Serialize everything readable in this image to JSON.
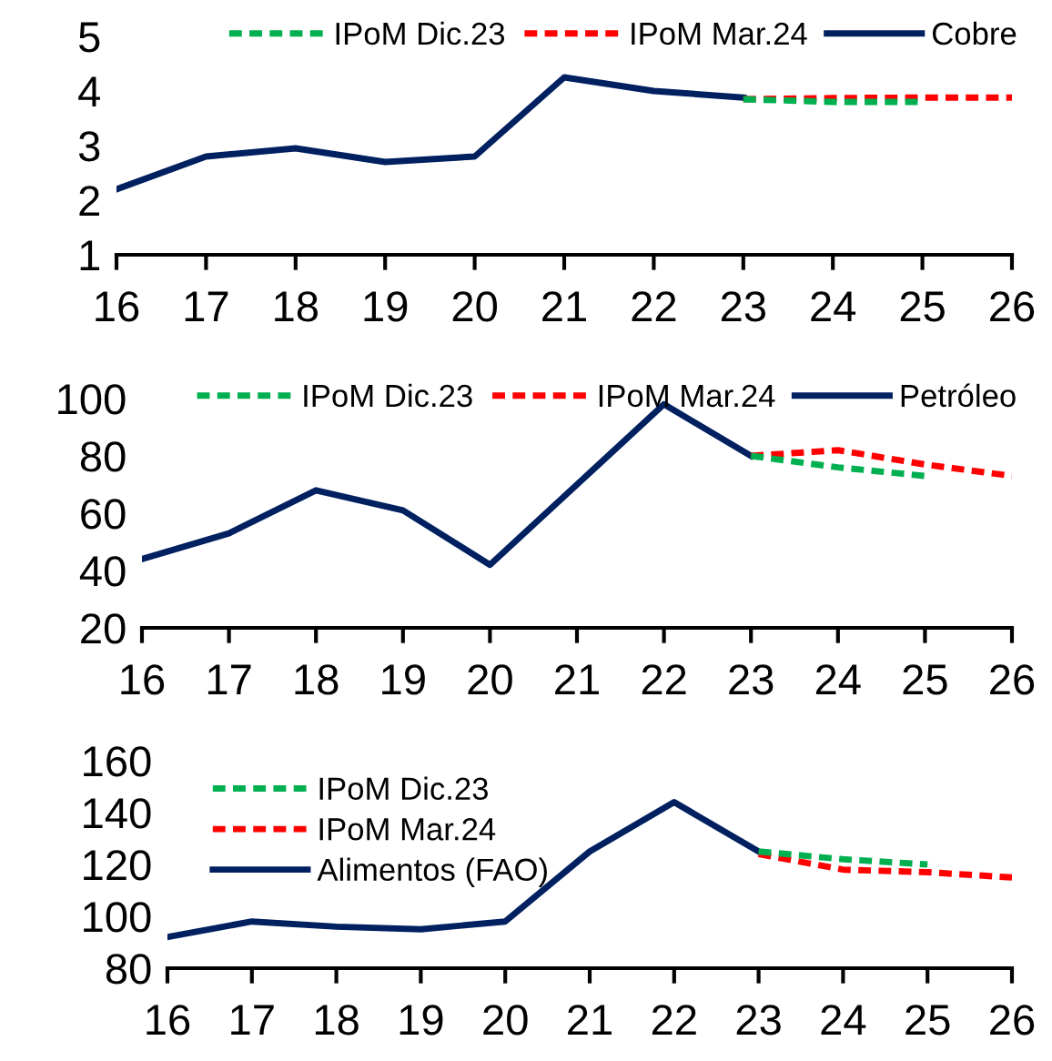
{
  "chart_data": [
    {
      "type": "line",
      "x": [
        16,
        17,
        18,
        19,
        20,
        21,
        22,
        23
      ],
      "xlim": [
        16,
        26
      ],
      "xticks": [
        16,
        17,
        18,
        19,
        20,
        21,
        22,
        23,
        24,
        25,
        26
      ],
      "ylim": [
        1,
        5
      ],
      "yticks": [
        1,
        2,
        3,
        4,
        5
      ],
      "grid": false,
      "legend": "top",
      "series": [
        {
          "name": "IPoM Dic.23",
          "color": "#00b050",
          "line_style": "dashed",
          "x": [
            23,
            24,
            25
          ],
          "values": [
            3.85,
            3.8,
            3.8
          ]
        },
        {
          "name": "IPoM Mar.24",
          "color": "#ff0000",
          "line_style": "dashed",
          "x": [
            23,
            24,
            25,
            26
          ],
          "values": [
            3.85,
            3.87,
            3.88,
            3.88
          ]
        },
        {
          "name": "Cobre",
          "color": "#002060",
          "line_style": "solid",
          "values": [
            2.2,
            2.8,
            2.95,
            2.7,
            2.8,
            4.25,
            4.0,
            3.88
          ]
        }
      ]
    },
    {
      "type": "line",
      "x": [
        16,
        17,
        18,
        19,
        20,
        21,
        22,
        23
      ],
      "xlim": [
        16,
        26
      ],
      "xticks": [
        16,
        17,
        18,
        19,
        20,
        21,
        22,
        23,
        24,
        25,
        26
      ],
      "ylim": [
        20,
        100
      ],
      "yticks": [
        20,
        40,
        60,
        80,
        100
      ],
      "grid": false,
      "legend": "top",
      "series": [
        {
          "name": "IPoM Dic.23",
          "color": "#00b050",
          "line_style": "dashed",
          "x": [
            23,
            24,
            25
          ],
          "values": [
            80,
            76,
            73
          ]
        },
        {
          "name": "IPoM Mar.24",
          "color": "#ff0000",
          "line_style": "dashed",
          "x": [
            23,
            24,
            25,
            26
          ],
          "values": [
            80,
            82,
            77,
            73
          ]
        },
        {
          "name": "Petróleo",
          "color": "#002060",
          "line_style": "solid",
          "values": [
            44,
            53,
            68,
            61,
            42,
            70,
            98,
            80
          ]
        }
      ]
    },
    {
      "type": "line",
      "x": [
        16,
        17,
        18,
        19,
        20,
        21,
        22,
        23
      ],
      "xlim": [
        16,
        26
      ],
      "xticks": [
        16,
        17,
        18,
        19,
        20,
        21,
        22,
        23,
        24,
        25,
        26
      ],
      "ylim": [
        80,
        160
      ],
      "yticks": [
        80,
        100,
        120,
        140,
        160
      ],
      "grid": false,
      "legend": "top left",
      "series": [
        {
          "name": "IPoM Dic.23",
          "color": "#00b050",
          "line_style": "dashed",
          "x": [
            23,
            24,
            25
          ],
          "values": [
            125,
            122,
            120
          ]
        },
        {
          "name": "IPoM Mar.24",
          "color": "#ff0000",
          "line_style": "dashed",
          "x": [
            23,
            24,
            25,
            26
          ],
          "values": [
            124,
            118,
            117,
            115
          ]
        },
        {
          "name": "Alimentos (FAO)",
          "color": "#002060",
          "line_style": "solid",
          "values": [
            92,
            98,
            96,
            95,
            98,
            125,
            144,
            125
          ]
        }
      ]
    }
  ]
}
